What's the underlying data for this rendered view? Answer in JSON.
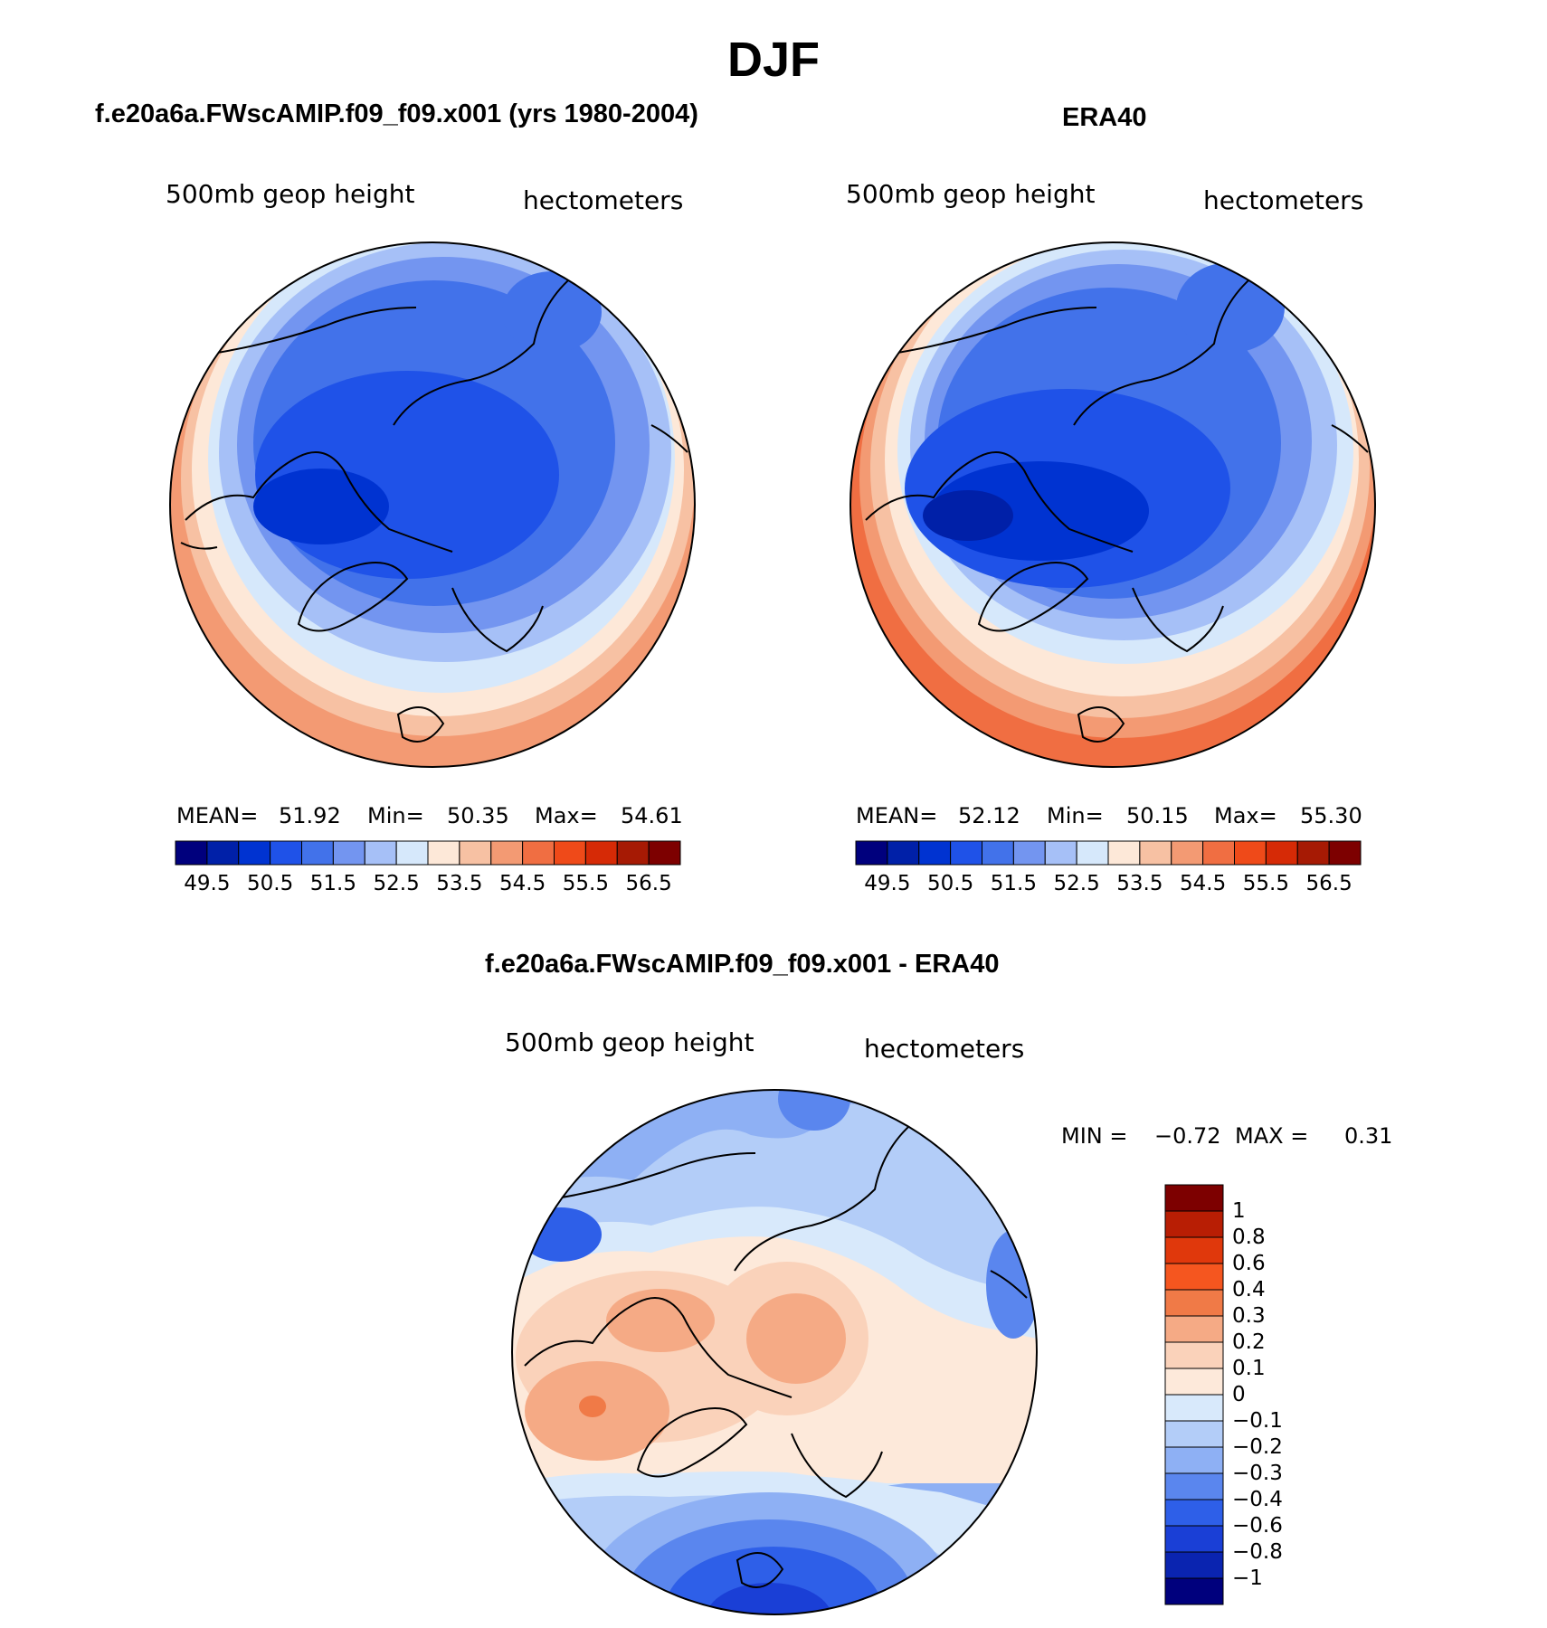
{
  "main_title": "DJF",
  "panels": [
    {
      "title": "f.e20a6a.FWscAMIP.f09_f09.x001 (yrs 1980-2004)",
      "field_label": "500mb  geop  height",
      "units": "hectometers",
      "mean_label": "MEAN=",
      "mean": "51.92",
      "min_label": "Min=",
      "min": "50.35",
      "max_label": "Max=",
      "max": "54.61"
    },
    {
      "title": "ERA40",
      "field_label": "500mb  geop  height",
      "units": "hectometers",
      "mean_label": "MEAN=",
      "mean": "52.12",
      "min_label": "Min=",
      "min": "50.15",
      "max_label": "Max=",
      "max": "55.30"
    }
  ],
  "abs_colorbar": {
    "colors": [
      "#00007d",
      "#0020a8",
      "#0033d1",
      "#1f52e8",
      "#4272ea",
      "#7395f0",
      "#a6c0f7",
      "#d6e8fb",
      "#fde8d8",
      "#f7c1a3",
      "#f39a73",
      "#f06e42",
      "#ef4a19",
      "#d62a06",
      "#a61a04",
      "#7d0000"
    ],
    "tick_labels": [
      "49.5",
      "50.5",
      "51.5",
      "52.5",
      "53.5",
      "54.5",
      "55.5",
      "56.5"
    ]
  },
  "diff_panel": {
    "title": "f.e20a6a.FWscAMIP.f09_f09.x001 - ERA40",
    "field_label": "500mb  geop  height",
    "units": "hectometers",
    "min_label": "MIN =",
    "min": "−0.72",
    "max_label": "MAX =",
    "max": "0.31"
  },
  "diff_colorbar": {
    "colors": [
      "#7d0000",
      "#b81e04",
      "#e0380c",
      "#f5561f",
      "#f07a47",
      "#f5aa85",
      "#fad2ba",
      "#fde9da",
      "#d8e9fb",
      "#b3cdf8",
      "#8eb0f4",
      "#5a86ee",
      "#2e5fe8",
      "#1a3fd6",
      "#0a24b0",
      "#00007d"
    ],
    "tick_labels": [
      "1",
      "0.8",
      "0.6",
      "0.4",
      "0.3",
      "0.2",
      "0.1",
      "0",
      "−0.1",
      "−0.2",
      "−0.3",
      "−0.4",
      "−0.6",
      "−0.8",
      "−1"
    ]
  }
}
